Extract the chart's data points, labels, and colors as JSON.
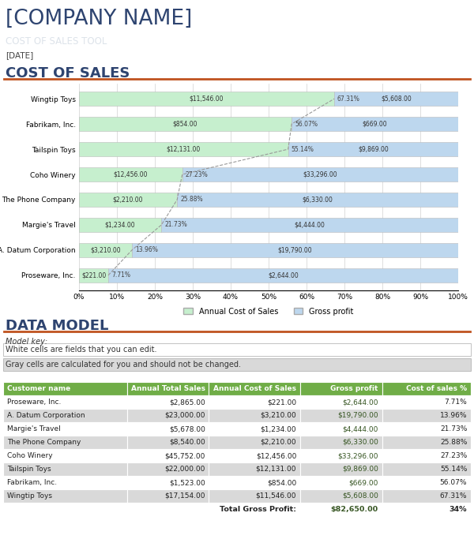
{
  "company_name": "[COMPANY NAME]",
  "tool_label": "COST OF SALES TOOL",
  "date_label": "[DATE]",
  "cos_section": "COST OF SALES",
  "data_model_section": "DATA MODEL",
  "chart_bars": [
    {
      "name": "Wingtip Toys",
      "cos": 11546,
      "gross": 5608,
      "cos_pct": 67.31,
      "total": 17154
    },
    {
      "name": "Fabrikam, Inc.",
      "cos": 854,
      "gross": 669,
      "cos_pct": 56.07,
      "total": 1523
    },
    {
      "name": "Tailspin Toys",
      "cos": 12131,
      "gross": 9869,
      "cos_pct": 55.14,
      "total": 22000
    },
    {
      "name": "Coho Winery",
      "cos": 12456,
      "gross": 33296,
      "cos_pct": 27.23,
      "total": 45752
    },
    {
      "name": "The Phone Company",
      "cos": 2210,
      "gross": 6330,
      "cos_pct": 25.88,
      "total": 8540
    },
    {
      "name": "Margie's Travel",
      "cos": 1234,
      "gross": 4444,
      "cos_pct": 21.73,
      "total": 5678
    },
    {
      "name": "A. Datum Corporation",
      "cos": 3210,
      "gross": 19790,
      "cos_pct": 13.96,
      "total": 23000
    },
    {
      "name": "Proseware, Inc.",
      "cos": 221,
      "gross": 2644,
      "cos_pct": 7.71,
      "total": 2865
    }
  ],
  "table_headers": [
    "Customer name",
    "Annual Total Sales",
    "Annual Cost of Sales",
    "Gross profit",
    "Cost of sales %"
  ],
  "table_rows": [
    [
      "Proseware, Inc.",
      "$2,865.00",
      "$221.00",
      "$2,644.00",
      "7.71%"
    ],
    [
      "A. Datum Corporation",
      "$23,000.00",
      "$3,210.00",
      "$19,790.00",
      "13.96%"
    ],
    [
      "Margie's Travel",
      "$5,678.00",
      "$1,234.00",
      "$4,444.00",
      "21.73%"
    ],
    [
      "The Phone Company",
      "$8,540.00",
      "$2,210.00",
      "$6,330.00",
      "25.88%"
    ],
    [
      "Coho Winery",
      "$45,752.00",
      "$12,456.00",
      "$33,296.00",
      "27.23%"
    ],
    [
      "Tailspin Toys",
      "$22,000.00",
      "$12,131.00",
      "$9,869.00",
      "55.14%"
    ],
    [
      "Fabrikam, Inc.",
      "$1,523.00",
      "$854.00",
      "$669.00",
      "56.07%"
    ],
    [
      "Wingtip Toys",
      "$17,154.00",
      "$11,546.00",
      "$5,608.00",
      "67.31%"
    ]
  ],
  "total_row": [
    "",
    "Total Gross Profit:",
    "$82,650.00",
    "34%"
  ],
  "orange_line": "#c0531f",
  "light_green_bar": "#c6efce",
  "light_blue_bar": "#bdd7ee",
  "section_title_color": "#2e4470",
  "tool_label_bg": "#8496a9",
  "tool_label_text": "#dde3ea",
  "row_white_bg": "#ffffff",
  "row_gray_bg": "#d9d9d9",
  "body_bg": "#ffffff",
  "grid_color": "#d0d0d0",
  "table_header_bg": "#70ad47",
  "fig_w": 600,
  "fig_h": 683
}
